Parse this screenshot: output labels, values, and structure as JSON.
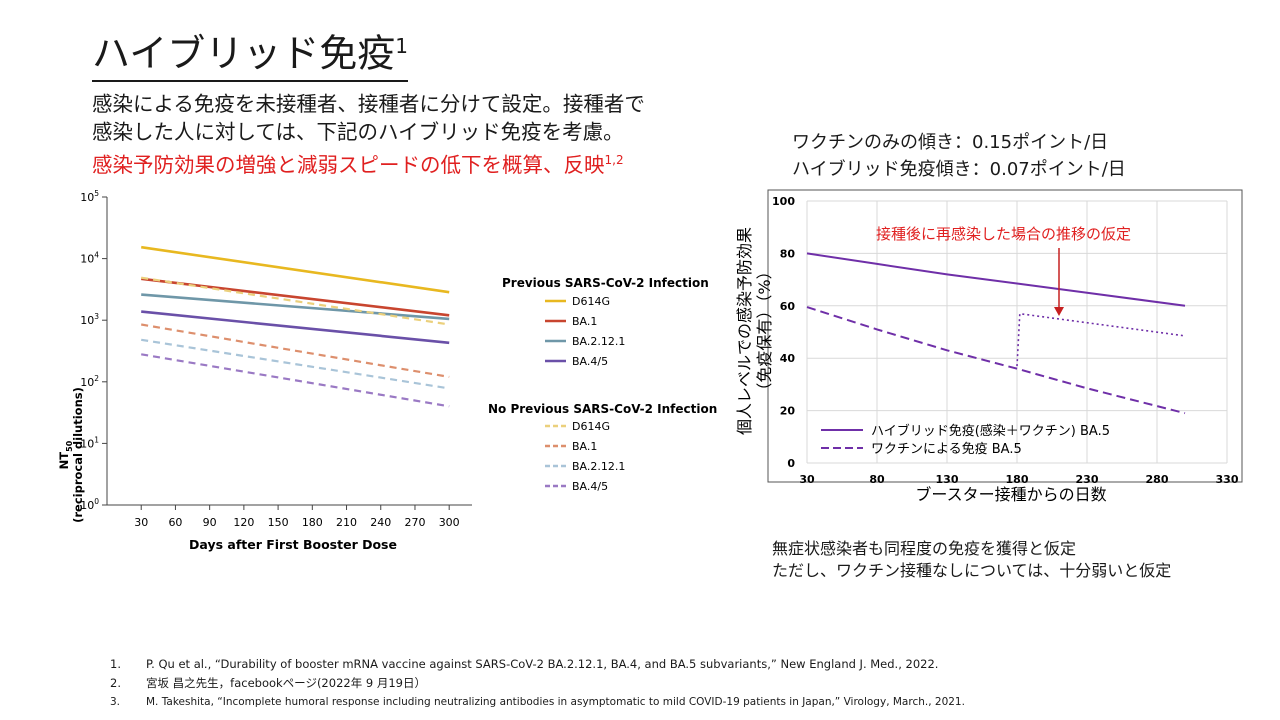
{
  "slide": {
    "title": "ハイブリッド免疫",
    "title_sup": "1",
    "desc_line1": "感染による免疫を未接種者、接種者に分けて設定。接種者で",
    "desc_line2": "感染した人に対しては、下記のハイブリッド免疫を考慮。",
    "desc_line3": "感染予防効果の増強と減弱スピードの低下を概算、反映",
    "desc_line3_sup": "1,2",
    "slope_vaccine": "ワクチンのみの傾き：0.15ポイント/日",
    "slope_hybrid": "ハイブリッド免疫傾き：0.07ポイント/日",
    "note_line1": "無症状感染者も同程度の免疫を獲得と仮定",
    "note_line2": "ただし、ワクチン接種なしについては、十分弱いと仮定",
    "references": [
      {
        "num": "1.",
        "text": "P. Qu et al., “Durability of booster mRNA vaccine against SARS-CoV-2 BA.2.12.1, BA.4, and BA.5 subvariants,” New England J.  Med., 2022."
      },
      {
        "num": "2.",
        "text": "宮坂 昌之先生，facebookページ(2022年 9 月19日）"
      },
      {
        "num": "3.",
        "text": "M. Takeshita, “Incomplete humoral response including neutralizing antibodies in asymptomatic to mild COVID-19 patients in Japan,” Virology, March., 2021."
      }
    ]
  },
  "chart_data": [
    {
      "type": "line",
      "y_scale": "log",
      "xlabel": "Days after First Booster Dose",
      "ylabel_main": "NT",
      "ylabel_sub": "50",
      "ylabel_2": "(reciprocal dilutions)",
      "x_ticks": [
        30,
        60,
        90,
        120,
        150,
        180,
        210,
        240,
        270,
        300
      ],
      "y_ticks": [
        {
          "base": "10",
          "exp": "0",
          "value": 1
        },
        {
          "base": "10",
          "exp": "1",
          "value": 10
        },
        {
          "base": "10",
          "exp": "2",
          "value": 100
        },
        {
          "base": "10",
          "exp": "3",
          "value": 1000
        },
        {
          "base": "10",
          "exp": "4",
          "value": 10000
        },
        {
          "base": "10",
          "exp": "5",
          "value": 100000
        }
      ],
      "xlim": [
        0,
        320
      ],
      "ylim": [
        1,
        100000
      ],
      "legend_title_prev": "Previous SARS-CoV-2 Infection",
      "legend_title_noprev": "No Previous SARS-CoV-2 Infection",
      "series": [
        {
          "name": "D614G",
          "group": "previous",
          "color": "#e8b820",
          "dash": "solid",
          "x": [
            30,
            300
          ],
          "y": [
            15300,
            2850
          ]
        },
        {
          "name": "BA.1",
          "group": "previous",
          "color": "#c8452f",
          "dash": "solid",
          "x": [
            30,
            300
          ],
          "y": [
            4700,
            1200
          ]
        },
        {
          "name": "BA.2.12.1",
          "group": "previous",
          "color": "#6f97a8",
          "dash": "solid",
          "x": [
            30,
            300
          ],
          "y": [
            2600,
            1050
          ]
        },
        {
          "name": "BA.4/5",
          "group": "previous",
          "color": "#6a50a8",
          "dash": "solid",
          "x": [
            30,
            300
          ],
          "y": [
            1380,
            430
          ]
        },
        {
          "name": "D614G",
          "group": "no_previous",
          "color": "#ebd07c",
          "dash": "dashed",
          "x": [
            30,
            300
          ],
          "y": [
            4900,
            850
          ]
        },
        {
          "name": "BA.1",
          "group": "no_previous",
          "color": "#dd8f6d",
          "dash": "dashed",
          "x": [
            30,
            300
          ],
          "y": [
            850,
            120
          ]
        },
        {
          "name": "BA.2.12.1",
          "group": "no_previous",
          "color": "#a9c4d8",
          "dash": "dashed",
          "x": [
            30,
            300
          ],
          "y": [
            480,
            78
          ]
        },
        {
          "name": "BA.4/5",
          "group": "no_previous",
          "color": "#9a79c4",
          "dash": "dashed",
          "x": [
            30,
            300
          ],
          "y": [
            280,
            40
          ]
        }
      ]
    },
    {
      "type": "line",
      "xlabel": "ブースター接種からの日数",
      "ylabel_1": "個人レベルでの感染予防効果",
      "ylabel_2": "（免疫保有）（%）",
      "x_ticks": [
        30,
        80,
        130,
        180,
        230,
        280,
        330
      ],
      "y_ticks": [
        0,
        20,
        40,
        60,
        80,
        100
      ],
      "xlim": [
        30,
        330
      ],
      "ylim": [
        0,
        100
      ],
      "grid": true,
      "annotation": "接種後に再感染した場合の推移の仮定",
      "annotation_color": "#e02020",
      "series": [
        {
          "name": "ハイブリッド免疫(感染＋ワクチン) BA.5",
          "color": "#6f2fa8",
          "dash": "solid",
          "x": [
            30,
            80,
            130,
            180,
            230,
            300
          ],
          "y": [
            80,
            76,
            72,
            68.5,
            65,
            60
          ]
        },
        {
          "name": "ワクチンによる免疫 BA.5",
          "color": "#6f2fa8",
          "dash": "dashed",
          "x": [
            30,
            80,
            130,
            180,
            230,
            300
          ],
          "y": [
            59.5,
            51,
            43,
            36,
            28.5,
            19
          ]
        },
        {
          "name": "",
          "color": "#6f2fa8",
          "dash": "dotted",
          "legend": false,
          "x": [
            180,
            182,
            300
          ],
          "y": [
            37,
            57,
            48.5
          ]
        }
      ]
    }
  ]
}
